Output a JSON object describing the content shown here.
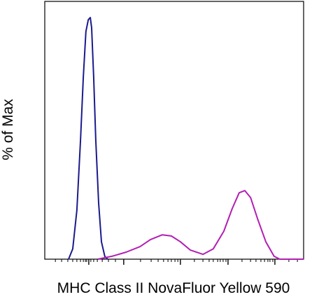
{
  "chart_data": {
    "type": "line",
    "y_label": "% of Max",
    "x_label": "MHC Class II NovaFluor Yellow 590",
    "series": [
      {
        "color": "#1a1a8c",
        "x": [
          9.2,
          10.8,
          12.4,
          13.8,
          14.9,
          15.9,
          16.8,
          17.6,
          18.1,
          18.9,
          19.7,
          20.8,
          21.9,
          23.2,
          24.3
        ],
        "values": [
          0,
          4.3,
          20.3,
          49.3,
          75.4,
          94.2,
          99.1,
          100,
          95.7,
          75.4,
          49.3,
          23.2,
          7.2,
          1.2,
          0
        ]
      },
      {
        "color": "#b31fb3",
        "x": [
          20.5,
          25.9,
          31.4,
          36.8,
          40.8,
          45.4,
          48.9,
          52.4,
          56.2,
          61.1,
          65.1,
          69.2,
          72.4,
          75.1,
          77.3,
          79.5,
          82.2,
          85.4,
          88.6,
          90.8,
          100
        ],
        "values": [
          0,
          1.2,
          2.9,
          5.2,
          8.1,
          10.1,
          9.6,
          7.2,
          3.8,
          2.0,
          4.3,
          11.6,
          20.9,
          27.5,
          28.4,
          25.5,
          16.8,
          7.2,
          1.2,
          0,
          0
        ]
      }
    ],
    "xlim": [
      0,
      100
    ],
    "ylim": [
      0,
      106.7
    ],
    "xticks": [
      17.0,
      30.5,
      52.4,
      70.8,
      88.9
    ],
    "xminorticks": [
      4.1,
      6.5,
      8.9,
      10.8,
      12.4,
      13.8,
      14.9,
      15.7,
      16.2,
      17.8,
      18.9,
      20.3,
      22.2,
      24.6,
      27.3,
      37.0,
      41.1,
      43.8,
      45.9,
      47.6,
      48.9,
      50.3,
      51.4,
      57.8,
      61.1,
      63.5,
      65.1,
      66.8,
      67.8,
      68.9,
      70.0,
      76.2,
      79.5,
      81.6,
      83.5,
      84.9,
      86.2,
      87.0,
      88.1,
      94.3,
      97.6
    ]
  }
}
